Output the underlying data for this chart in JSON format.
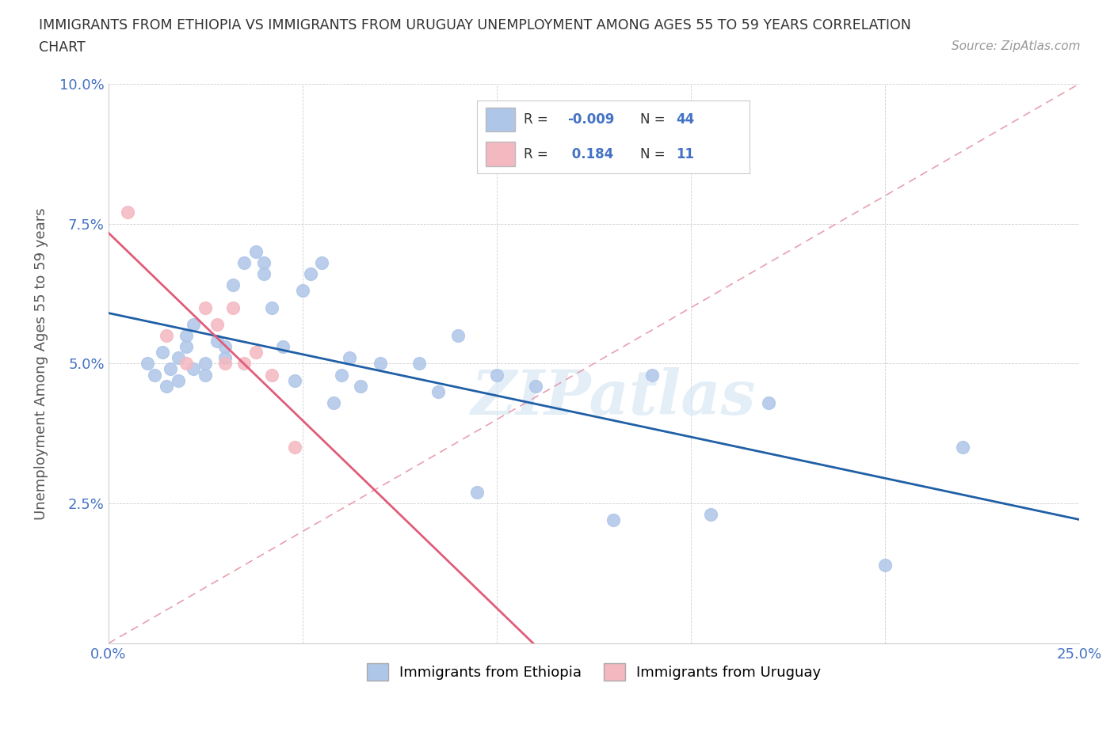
{
  "title_line1": "IMMIGRANTS FROM ETHIOPIA VS IMMIGRANTS FROM URUGUAY UNEMPLOYMENT AMONG AGES 55 TO 59 YEARS CORRELATION",
  "title_line2": "CHART",
  "source": "Source: ZipAtlas.com",
  "xlabel": "",
  "ylabel": "Unemployment Among Ages 55 to 59 years",
  "xlim": [
    0.0,
    0.25
  ],
  "ylim": [
    0.0,
    0.1
  ],
  "xticks": [
    0.0,
    0.05,
    0.1,
    0.15,
    0.2,
    0.25
  ],
  "yticks": [
    0.0,
    0.025,
    0.05,
    0.075,
    0.1
  ],
  "ethiopia_R": -0.009,
  "ethiopia_N": 44,
  "uruguay_R": 0.184,
  "uruguay_N": 11,
  "ethiopia_color": "#aec6e8",
  "uruguay_color": "#f4b8c1",
  "ethiopia_line_color": "#1f5fa6",
  "uruguay_line_color": "#e05c7a",
  "trend_line_color": "#c8c8c8",
  "legend_ethiopia": "Immigrants from Ethiopia",
  "legend_uruguay": "Immigrants from Uruguay",
  "ethiopia_x": [
    0.01,
    0.012,
    0.014,
    0.015,
    0.016,
    0.018,
    0.018,
    0.02,
    0.02,
    0.022,
    0.022,
    0.025,
    0.025,
    0.028,
    0.03,
    0.03,
    0.032,
    0.035,
    0.038,
    0.04,
    0.04,
    0.042,
    0.045,
    0.048,
    0.05,
    0.052,
    0.055,
    0.058,
    0.06,
    0.062,
    0.065,
    0.07,
    0.08,
    0.085,
    0.09,
    0.095,
    0.1,
    0.11,
    0.13,
    0.14,
    0.155,
    0.17,
    0.2,
    0.22
  ],
  "ethiopia_y": [
    0.05,
    0.048,
    0.052,
    0.046,
    0.049,
    0.051,
    0.047,
    0.055,
    0.053,
    0.057,
    0.049,
    0.048,
    0.05,
    0.054,
    0.053,
    0.051,
    0.064,
    0.068,
    0.07,
    0.068,
    0.066,
    0.06,
    0.053,
    0.047,
    0.063,
    0.066,
    0.068,
    0.043,
    0.048,
    0.051,
    0.046,
    0.05,
    0.05,
    0.045,
    0.055,
    0.027,
    0.048,
    0.046,
    0.022,
    0.048,
    0.023,
    0.043,
    0.014,
    0.035
  ],
  "uruguay_x": [
    0.005,
    0.015,
    0.02,
    0.025,
    0.028,
    0.03,
    0.032,
    0.035,
    0.038,
    0.042,
    0.048
  ],
  "uruguay_y": [
    0.077,
    0.055,
    0.05,
    0.06,
    0.057,
    0.05,
    0.06,
    0.05,
    0.052,
    0.048,
    0.035
  ],
  "background_color": "#ffffff",
  "watermark": "ZIPatlas"
}
